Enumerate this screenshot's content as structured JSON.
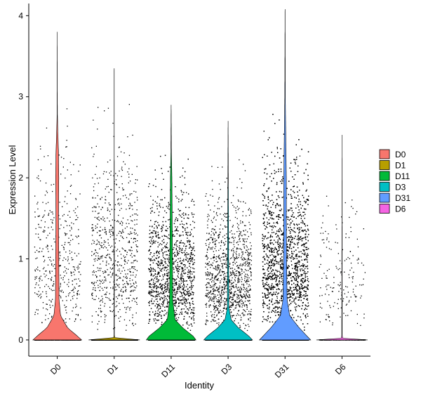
{
  "chart_data": {
    "type": "violin",
    "xlabel": "Identity",
    "ylabel": "Expression Level",
    "ylim": [
      -0.2,
      4.15
    ],
    "yticks": [
      0,
      1,
      2,
      3,
      4
    ],
    "legend_position": "right",
    "grid": false,
    "categories": [
      "D0",
      "D1",
      "D11",
      "D3",
      "D31",
      "D6"
    ],
    "series": [
      {
        "name": "D0",
        "color": "#F8766D",
        "max": 3.8,
        "points_est": 1000,
        "nonzero_fraction": 0.45,
        "spread": 0.9,
        "density": [
          [
            0,
            0.95
          ],
          [
            0.05,
            0.78
          ],
          [
            0.15,
            0.4
          ],
          [
            0.3,
            0.13
          ],
          [
            0.5,
            0.07
          ],
          [
            1.0,
            0.06
          ],
          [
            1.5,
            0.05
          ],
          [
            2.0,
            0.06
          ],
          [
            2.3,
            0.05
          ],
          [
            2.6,
            0.02
          ],
          [
            2.8,
            0.005
          ],
          [
            3.8,
            0
          ]
        ]
      },
      {
        "name": "D1",
        "color": "#B79F00",
        "max": 3.35,
        "points_est": 1700,
        "nonzero_fraction": 0.4,
        "spread": 0.95,
        "density": [
          [
            0,
            1
          ],
          [
            0.01,
            0.04
          ],
          [
            0.05,
            0.008
          ],
          [
            3.35,
            0
          ]
        ]
      },
      {
        "name": "D11",
        "color": "#00BA38",
        "max": 2.9,
        "points_est": 4500,
        "nonzero_fraction": 0.5,
        "spread": 0.75,
        "density": [
          [
            0,
            0.97
          ],
          [
            0.05,
            0.85
          ],
          [
            0.15,
            0.45
          ],
          [
            0.25,
            0.15
          ],
          [
            0.5,
            0.06
          ],
          [
            1.0,
            0.05
          ],
          [
            1.5,
            0.04
          ],
          [
            2.0,
            0.03
          ],
          [
            2.3,
            0.01
          ],
          [
            2.9,
            0
          ]
        ]
      },
      {
        "name": "D3",
        "color": "#00BFC4",
        "max": 2.7,
        "points_est": 2600,
        "nonzero_fraction": 0.45,
        "spread": 0.7,
        "density": [
          [
            0,
            0.95
          ],
          [
            0.05,
            0.8
          ],
          [
            0.15,
            0.4
          ],
          [
            0.25,
            0.12
          ],
          [
            0.4,
            0.03
          ],
          [
            1.0,
            0.02
          ],
          [
            1.5,
            0.015
          ],
          [
            2.0,
            0.008
          ],
          [
            2.7,
            0
          ]
        ]
      },
      {
        "name": "D31",
        "color": "#619CFF",
        "max": 4.08,
        "points_est": 7000,
        "nonzero_fraction": 0.6,
        "spread": 0.9,
        "density": [
          [
            0,
            1
          ],
          [
            0.05,
            0.85
          ],
          [
            0.15,
            0.55
          ],
          [
            0.3,
            0.18
          ],
          [
            0.5,
            0.08
          ],
          [
            1.0,
            0.06
          ],
          [
            1.5,
            0.05
          ],
          [
            2.0,
            0.05
          ],
          [
            2.5,
            0.03
          ],
          [
            3.0,
            0.01
          ],
          [
            4.08,
            0
          ]
        ]
      },
      {
        "name": "D6",
        "color": "#F564E3",
        "max": 2.53,
        "points_est": 450,
        "nonzero_fraction": 0.4,
        "spread": 0.7,
        "density": [
          [
            0,
            1
          ],
          [
            0.01,
            0.04
          ],
          [
            0.05,
            0.008
          ],
          [
            2.53,
            0
          ]
        ]
      }
    ]
  }
}
